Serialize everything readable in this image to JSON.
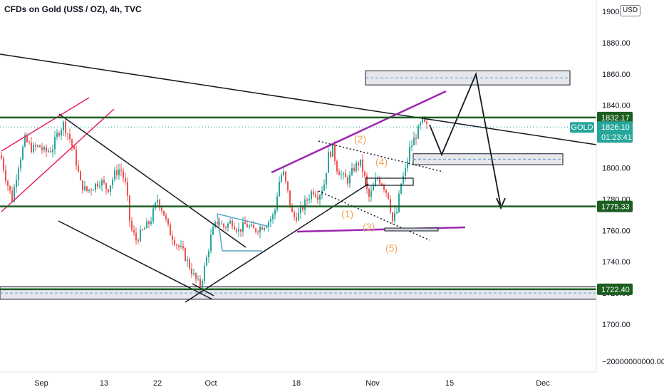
{
  "header": {
    "title": "CFDs on Gold (US$ / OZ), 4h, TVC",
    "currency": "USD"
  },
  "chart_data": {
    "type": "candlestick",
    "symbol": "GOLD",
    "interval": "4h",
    "ylim": [
      1685,
      1905
    ],
    "yticks": [
      "1900.00",
      "1880.00",
      "1860.00",
      "1840.00",
      "1820.00",
      "1800.00",
      "1780.00",
      "1760.00",
      "1740.00",
      "1720.00",
      "1700.00"
    ],
    "bottom_tick_label": "−20000000000.00",
    "xticks": [
      "Sep",
      "13",
      "22",
      "Oct",
      "18",
      "Nov",
      "15",
      "Dec"
    ],
    "price_tags": [
      {
        "label": "1832.17",
        "value": 1832.17,
        "color": "#1b5e20"
      },
      {
        "label": "1775.33",
        "value": 1775.33,
        "color": "#1b5e20"
      },
      {
        "label": "1722.40",
        "value": 1722.4,
        "color": "#1b5e20"
      }
    ],
    "current": {
      "symbol": "GOLD",
      "price": "1826.10",
      "countdown": "01:23:41",
      "value": 1826.1,
      "color": "#26a69a"
    },
    "wave_labels": [
      "(1)",
      "(2)",
      "(3)",
      "(4)",
      "(5)"
    ],
    "horizontal_levels": [
      1832.17,
      1775.33,
      1722.4
    ],
    "zones": [
      {
        "from": 1853,
        "to": 1862
      },
      {
        "from": 1802,
        "to": 1809
      },
      {
        "from": 1716,
        "to": 1724
      }
    ],
    "colors": {
      "up": "#26a69a",
      "down": "#ef5350",
      "level": "#1b5e20",
      "channel_up": "#e91e63",
      "wedge": "#9c27b0",
      "triangle": "#5aa5c9"
    }
  }
}
